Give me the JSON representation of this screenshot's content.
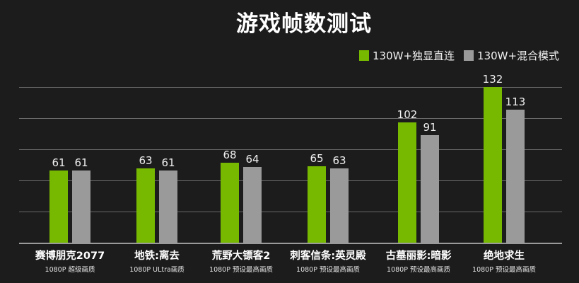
{
  "title": "游戏帧数测试",
  "legend": [
    {
      "label": "130W+独显直连",
      "color": "#76b900"
    },
    {
      "label": "130W+混合模式",
      "color": "#9a9a9a"
    }
  ],
  "colors": {
    "background": "#1c1c1c",
    "series_1": "#76b900",
    "series_2": "#9a9a9a",
    "gridline": "#6a6a6a"
  },
  "chart_data": {
    "type": "bar",
    "title": "游戏帧数测试",
    "xlabel": "",
    "ylabel": "",
    "categories": [
      "赛博朋克2077",
      "地铁:离去",
      "荒野大镖客2",
      "刺客信条:英灵殿",
      "古墓丽影:暗影",
      "绝地求生"
    ],
    "category_subtitles": [
      "1080P 超级画质",
      "1080P ULtra画质",
      "1080P 预设最高画质",
      "1080P 预设最高画质",
      "1080P 预设最高画质",
      "1080P 预设最高画质"
    ],
    "series": [
      {
        "name": "130W+独显直连",
        "values": [
          61,
          63,
          68,
          65,
          102,
          132
        ]
      },
      {
        "name": "130W+混合模式",
        "values": [
          61,
          61,
          64,
          63,
          91,
          113
        ]
      }
    ],
    "ylim": [
      0,
      132
    ],
    "grid": true,
    "gridlines_count": 5,
    "y_axis_visible": false,
    "data_labels": true,
    "legend_position": "top-right"
  }
}
